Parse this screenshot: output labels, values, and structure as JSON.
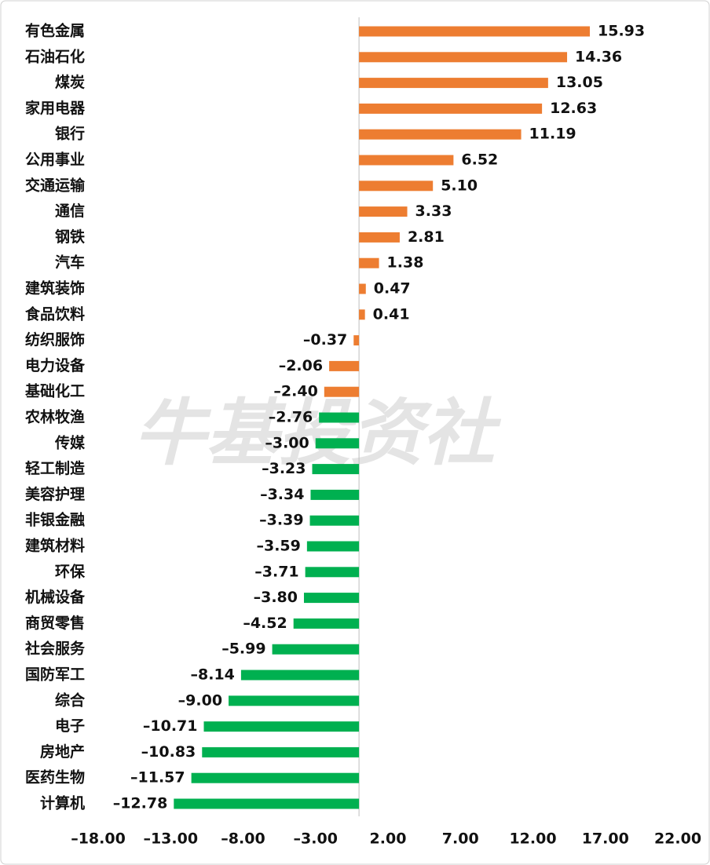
{
  "chart_data": {
    "type": "hbar",
    "watermark": "牛基投资社",
    "categories": [
      "有色金属",
      "石油石化",
      "煤炭",
      "家用电器",
      "银行",
      "公用事业",
      "交通运输",
      "通信",
      "钢铁",
      "汽车",
      "建筑装饰",
      "食品饮料",
      "纺织服饰",
      "电力设备",
      "基础化工",
      "农林牧渔",
      "传媒",
      "轻工制造",
      "美容护理",
      "非银金融",
      "建筑材料",
      "环保",
      "机械设备",
      "商贸零售",
      "社会服务",
      "国防军工",
      "综合",
      "电子",
      "房地产",
      "医药生物",
      "计算机"
    ],
    "values": [
      15.93,
      14.36,
      13.05,
      12.63,
      11.19,
      6.52,
      5.1,
      3.33,
      2.81,
      1.38,
      0.47,
      0.41,
      -0.37,
      -2.06,
      -2.4,
      -2.76,
      -3.0,
      -3.23,
      -3.34,
      -3.39,
      -3.59,
      -3.71,
      -3.8,
      -4.52,
      -5.99,
      -8.14,
      -9.0,
      -10.71,
      -10.83,
      -11.57,
      -12.78
    ],
    "value_labels": [
      "15.93",
      "14.36",
      "13.05",
      "12.63",
      "11.19",
      "6.52",
      "5.10",
      "3.33",
      "2.81",
      "1.38",
      "0.47",
      "0.41",
      "–0.37",
      "–2.06",
      "–2.40",
      "–2.76",
      "–3.00",
      "–3.23",
      "–3.34",
      "–3.39",
      "–3.59",
      "–3.71",
      "–3.80",
      "–4.52",
      "–5.99",
      "–8.14",
      "–9.00",
      "–10.71",
      "–10.83",
      "–11.57",
      "–12.78"
    ],
    "colors": [
      "#ED7D31",
      "#ED7D31",
      "#ED7D31",
      "#ED7D31",
      "#ED7D31",
      "#ED7D31",
      "#ED7D31",
      "#ED7D31",
      "#ED7D31",
      "#ED7D31",
      "#ED7D31",
      "#ED7D31",
      "#ED7D31",
      "#ED7D31",
      "#ED7D31",
      "#00B050",
      "#00B050",
      "#00B050",
      "#00B050",
      "#00B050",
      "#00B050",
      "#00B050",
      "#00B050",
      "#00B050",
      "#00B050",
      "#00B050",
      "#00B050",
      "#00B050",
      "#00B050",
      "#00B050",
      "#00B050"
    ],
    "xlim": [
      -18,
      22
    ],
    "xticks": [
      {
        "value": -18,
        "label": "–18.00"
      },
      {
        "value": -13,
        "label": "–13.00"
      },
      {
        "value": -8,
        "label": "–8.00"
      },
      {
        "value": -3,
        "label": "–3.00"
      },
      {
        "value": 2,
        "label": "2.00"
      },
      {
        "value": 7,
        "label": "7.00"
      },
      {
        "value": 12,
        "label": "12.00"
      },
      {
        "value": 17,
        "label": "17.00"
      },
      {
        "value": 22,
        "label": "22.00"
      }
    ]
  }
}
